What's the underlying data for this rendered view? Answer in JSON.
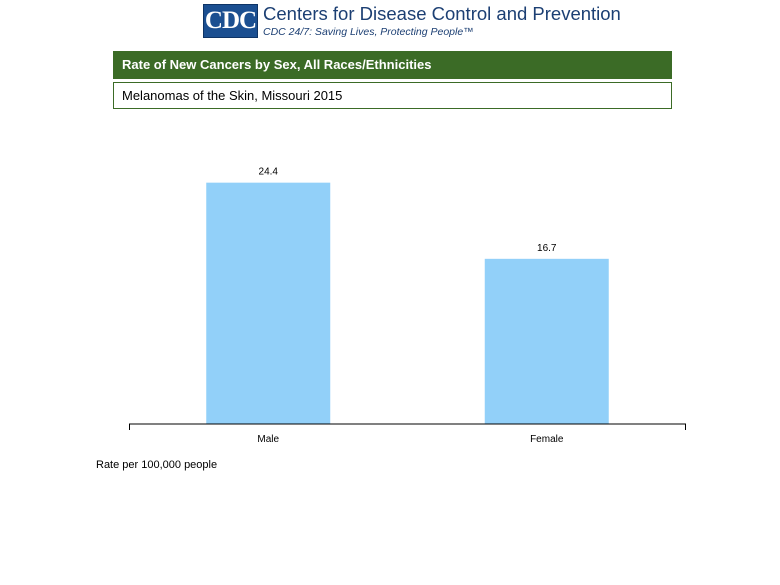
{
  "header": {
    "logo_abbr": "CDC",
    "org_name": "Centers for Disease Control and Prevention",
    "tagline": "CDC 24/7: Saving Lives, Protecting People™"
  },
  "title": "Rate of New Cancers by Sex, All Races/Ethnicities",
  "subtitle": "Melanomas of the Skin, Missouri 2015",
  "colors": {
    "title_bar": "#3b6b26",
    "bar": "#92d0f9",
    "logo": "#1b4f91"
  },
  "chart_data": {
    "type": "bar",
    "categories": [
      "Male",
      "Female"
    ],
    "values": [
      24.4,
      16.7
    ],
    "value_labels": [
      "24.4",
      "16.7"
    ],
    "ylabel": "Rate per 100,000 people",
    "ylim": [
      0,
      27.5
    ],
    "grid": false
  }
}
